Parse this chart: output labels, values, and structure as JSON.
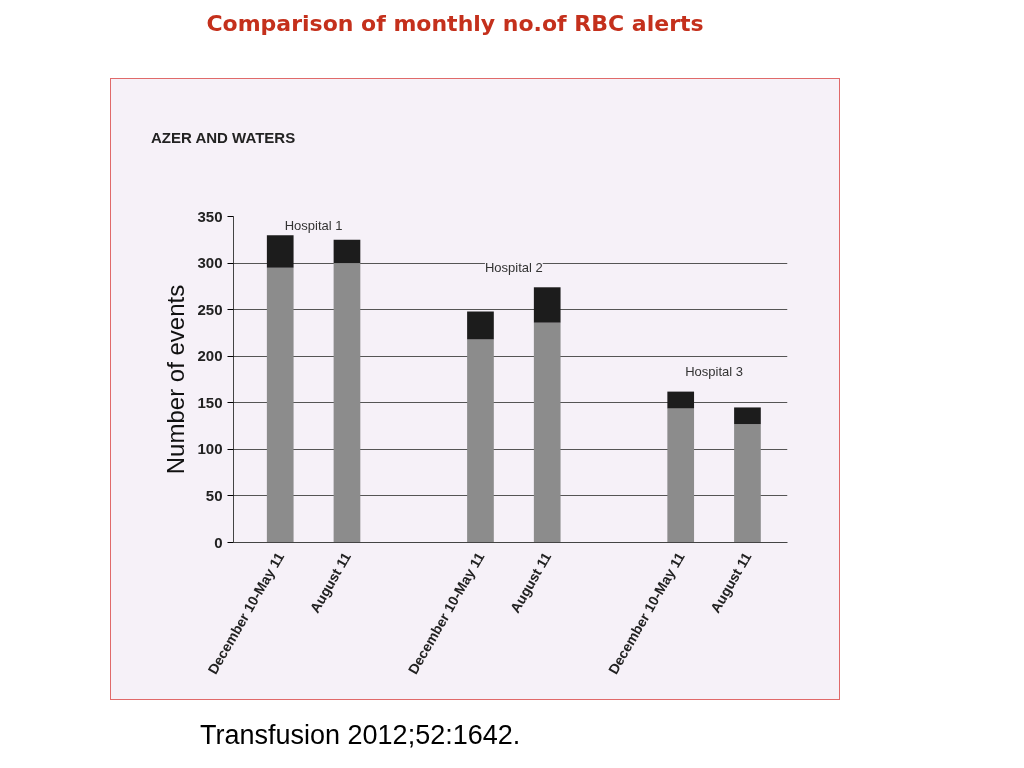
{
  "chart_data": {
    "type": "bar",
    "title": "Comparison of monthly no.of RBC alerts",
    "ylabel": "Number of events",
    "categories": [
      "December 10-May 11",
      "August 11",
      null,
      "December 10-May 11",
      "August 11",
      null,
      "December 10-May 11",
      "August 11"
    ],
    "series": [
      {
        "color": "#8c8c8c",
        "values": [
          295,
          300,
          null,
          218,
          236,
          null,
          144,
          127
        ]
      },
      {
        "color": "#1c1c1c",
        "values": [
          35,
          25,
          null,
          30,
          38,
          null,
          18,
          18
        ]
      }
    ],
    "stacked": true,
    "ylim": [
      0,
      350
    ],
    "yticks": [
      0,
      50,
      100,
      150,
      200,
      250,
      300,
      350
    ],
    "grid": "y",
    "annotations": [
      "AZER AND WATERS",
      "Hospital 1",
      "Hospital 2",
      "Hospital 3",
      "Transfusion 2012;52:1642."
    ]
  }
}
